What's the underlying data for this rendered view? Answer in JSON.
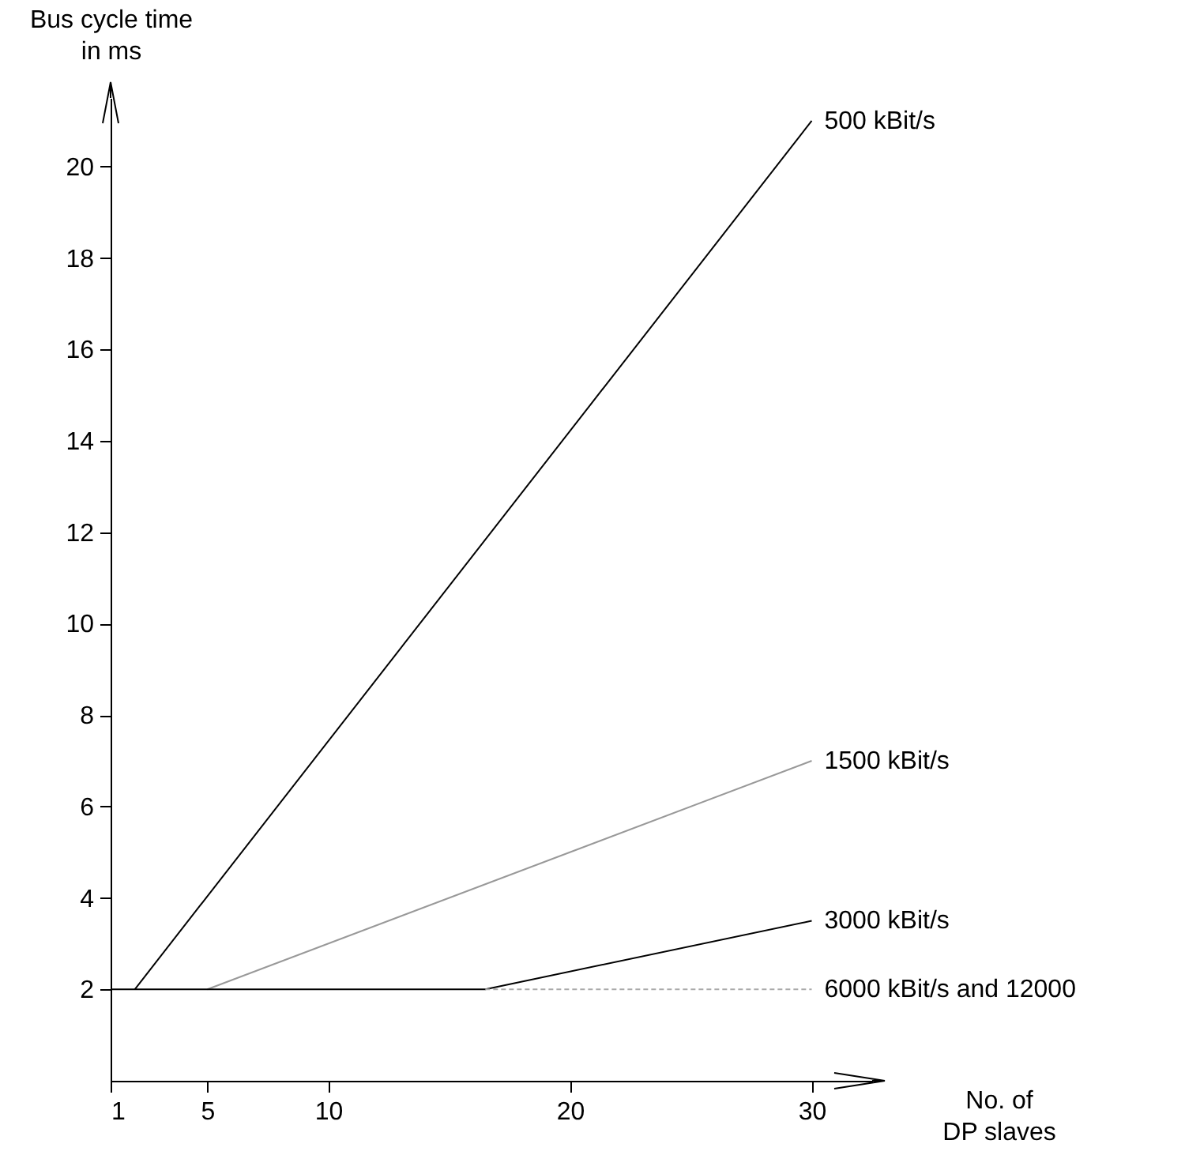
{
  "chart_data": {
    "type": "line",
    "xlabel": "No. of\nDP slaves",
    "ylabel": "Bus cycle time\nin ms",
    "xlim": [
      1,
      32.5
    ],
    "ylim": [
      0,
      21.5
    ],
    "xticks": [
      1,
      5,
      10,
      20,
      30
    ],
    "yticks": [
      2,
      4,
      6,
      8,
      10,
      12,
      14,
      16,
      18,
      20
    ],
    "series": [
      {
        "name": "500 kBit/s",
        "color": "#000000",
        "x": [
          2,
          30
        ],
        "values": [
          2,
          21
        ]
      },
      {
        "name": "1500 kBit/s",
        "color": "#999999",
        "x": [
          5,
          30
        ],
        "values": [
          2,
          7
        ]
      },
      {
        "name": "3000 kBit/s",
        "color": "#000000",
        "x": [
          1,
          16.5,
          30
        ],
        "values": [
          2,
          2,
          3.5
        ]
      },
      {
        "name": "6000 kBit/s and 12000",
        "color": "#aaaaaa",
        "line_style": "dashed",
        "x": [
          16.5,
          30
        ],
        "values": [
          2,
          2
        ]
      }
    ]
  }
}
